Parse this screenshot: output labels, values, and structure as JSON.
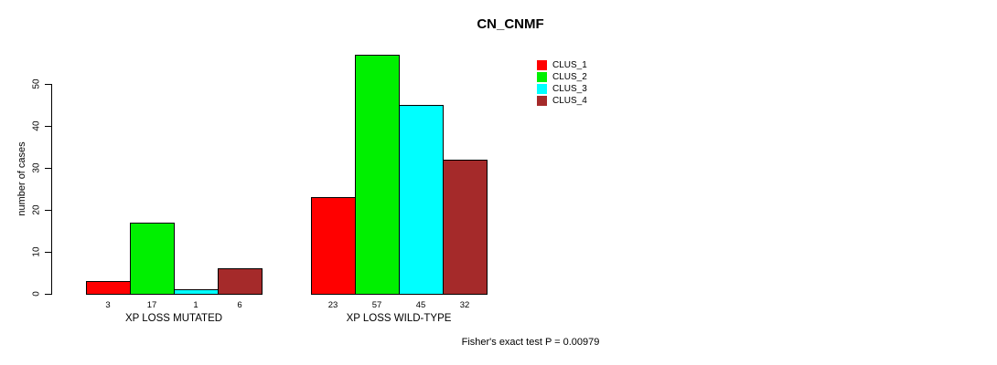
{
  "chart_data": {
    "type": "bar",
    "title": "CN_CNMF",
    "ylabel": "number of cases",
    "xlabel": "",
    "categories": [
      "XP LOSS MUTATED",
      "XP LOSS WILD-TYPE"
    ],
    "series": [
      {
        "name": "CLUS_1",
        "color": "#FF0000",
        "values": [
          3,
          23
        ]
      },
      {
        "name": "CLUS_2",
        "color": "#00F000",
        "values": [
          17,
          57
        ]
      },
      {
        "name": "CLUS_3",
        "color": "#00FFFF",
        "values": [
          1,
          45
        ]
      },
      {
        "name": "CLUS_4",
        "color": "#A52A2A",
        "values": [
          6,
          32
        ]
      }
    ],
    "yticks": [
      0,
      10,
      20,
      30,
      40,
      50
    ],
    "ylim": [
      0,
      50
    ],
    "grid": false,
    "bar_value_labels": true,
    "legend_position": "top-right",
    "legend_entries": [
      "CLUS_1",
      "CLUS_2",
      "CLUS_3",
      "CLUS_4"
    ],
    "annotation": "Fisher's exact test P = 0.00979"
  }
}
